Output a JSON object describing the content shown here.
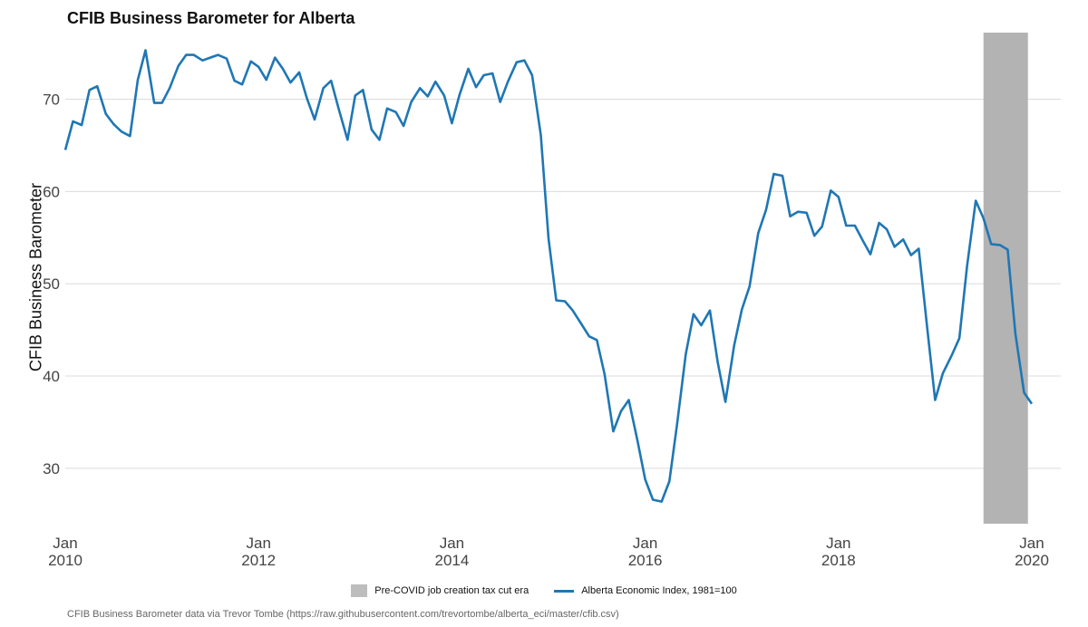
{
  "chart_data": {
    "type": "line",
    "title": "CFIB Business Barometer for Alberta",
    "ylabel": "CFIB Business Barometer",
    "xlabel": "",
    "ylim": [
      24,
      78
    ],
    "xlim": [
      2010.0,
      2020.3
    ],
    "yticks": [
      30,
      40,
      50,
      60,
      70
    ],
    "xticks": [
      {
        "value": 2010,
        "line1": "Jan",
        "line2": "2010"
      },
      {
        "value": 2012,
        "line1": "Jan",
        "line2": "2012"
      },
      {
        "value": 2014,
        "line1": "Jan",
        "line2": "2014"
      },
      {
        "value": 2016,
        "line1": "Jan",
        "line2": "2016"
      },
      {
        "value": 2018,
        "line1": "Jan",
        "line2": "2018"
      },
      {
        "value": 2020,
        "line1": "Jan",
        "line2": "2020"
      }
    ],
    "shaded_region": {
      "label": "Pre-COVID job creation tax cut era",
      "start": 2019.5,
      "end": 2019.96,
      "color": "#b3b3b3"
    },
    "series": [
      {
        "name": "Alberta Economic Index, 1981=100",
        "color": "#1f77b4",
        "x": [
          2010.0,
          2010.08,
          2010.17,
          2010.25,
          2010.33,
          2010.42,
          2010.5,
          2010.58,
          2010.67,
          2010.75,
          2010.83,
          2010.92,
          2011.0,
          2011.08,
          2011.17,
          2011.25,
          2011.33,
          2011.42,
          2011.5,
          2011.58,
          2011.67,
          2011.75,
          2011.83,
          2011.92,
          2012.0,
          2012.08,
          2012.17,
          2012.25,
          2012.33,
          2012.42,
          2012.5,
          2012.58,
          2012.67,
          2012.75,
          2012.83,
          2012.92,
          2013.0,
          2013.08,
          2013.17,
          2013.25,
          2013.33,
          2013.42,
          2013.5,
          2013.58,
          2013.67,
          2013.75,
          2013.83,
          2013.92,
          2014.0,
          2014.08,
          2014.17,
          2014.25,
          2014.33,
          2014.42,
          2014.5,
          2014.58,
          2014.67,
          2014.75,
          2014.83,
          2014.92,
          2015.0,
          2015.08,
          2015.17,
          2015.25,
          2015.33,
          2015.42,
          2015.5,
          2015.58,
          2015.67,
          2015.75,
          2015.83,
          2015.92,
          2016.0,
          2016.08,
          2016.17,
          2016.25,
          2016.33,
          2016.42,
          2016.5,
          2016.58,
          2016.67,
          2016.75,
          2016.83,
          2016.92,
          2017.0,
          2017.08,
          2017.17,
          2017.25,
          2017.33,
          2017.42,
          2017.5,
          2017.58,
          2017.67,
          2017.75,
          2017.83,
          2017.92,
          2018.0,
          2018.08,
          2018.17,
          2018.25,
          2018.33,
          2018.42,
          2018.5,
          2018.58,
          2018.67,
          2018.75,
          2018.83,
          2018.92,
          2019.0,
          2019.08,
          2019.17,
          2019.25,
          2019.33,
          2019.42,
          2019.5,
          2019.58,
          2019.67,
          2019.75,
          2019.83,
          2019.92,
          2020.0
        ],
        "values": [
          64.5,
          67.6,
          67.2,
          71.0,
          71.4,
          68.4,
          67.3,
          66.5,
          66.0,
          72.1,
          75.3,
          69.6,
          69.6,
          71.2,
          73.6,
          74.8,
          74.8,
          74.2,
          74.5,
          74.8,
          74.4,
          72.0,
          71.6,
          74.1,
          73.5,
          72.1,
          74.5,
          73.3,
          71.8,
          72.9,
          70.1,
          67.8,
          71.2,
          72.0,
          68.9,
          65.6,
          70.4,
          71.0,
          66.7,
          65.6,
          69.0,
          68.6,
          67.1,
          69.7,
          71.2,
          70.3,
          71.9,
          70.4,
          67.4,
          70.5,
          73.3,
          71.3,
          72.6,
          72.8,
          69.7,
          71.9,
          74.0,
          74.2,
          72.6,
          66.1,
          54.9,
          48.2,
          48.1,
          47.1,
          45.8,
          44.3,
          43.9,
          40.2,
          34.0,
          36.2,
          37.4,
          33.0,
          28.8,
          26.6,
          26.4,
          28.6,
          34.8,
          42.4,
          46.7,
          45.5,
          47.1,
          41.5,
          37.2,
          43.3,
          47.2,
          49.7,
          55.5,
          58.0,
          61.9,
          61.7,
          57.3,
          57.8,
          57.7,
          55.2,
          56.2,
          60.1,
          59.4,
          56.3,
          56.3,
          54.7,
          53.2,
          56.6,
          55.9,
          54.0,
          54.8,
          53.1,
          53.8,
          45.0,
          37.4,
          40.3,
          42.2,
          44.1,
          51.9,
          59.0,
          57.1,
          54.3,
          54.2,
          53.7,
          44.6,
          38.2,
          37.0
        ]
      }
    ]
  },
  "legend": {
    "shaded_label": "Pre-COVID job creation tax cut era",
    "line_label": "Alberta Economic Index, 1981=100",
    "shaded_color": "#bdbdbd",
    "line_color": "#1f77b4"
  },
  "caption": "CFIB Business Barometer data via Trevor Tombe (https://raw.githubusercontent.com/trevortombe/alberta_eci/master/cfib.csv)"
}
